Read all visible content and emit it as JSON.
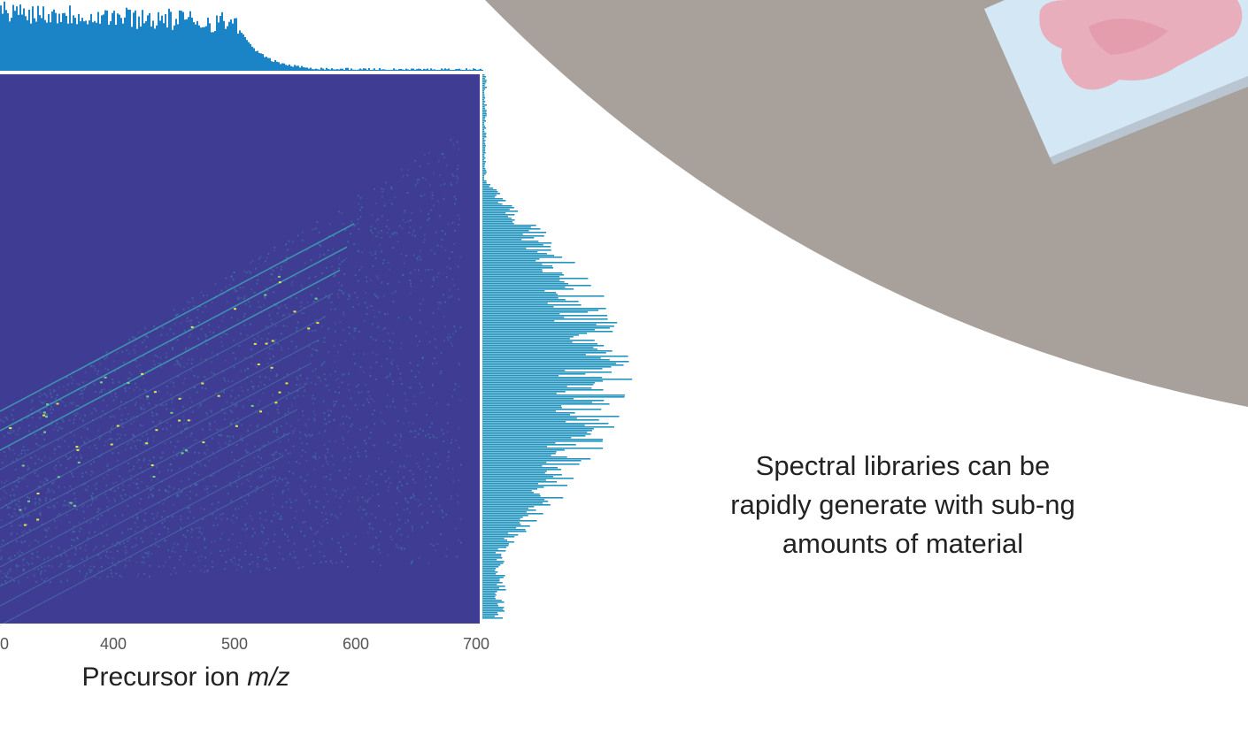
{
  "colors": {
    "heatmap_background": "#3f3c93",
    "marginal_top": "#1b84c6",
    "marginal_right": "#2394bd",
    "circle_fill": "#a8a19b",
    "slide_fill": "#d3e7f4",
    "tissue_fill": "#eba3b1"
  },
  "chart_data": {
    "type": "heatmap",
    "title": "",
    "xlabel_prefix": "Precursor ion ",
    "xlabel_italic": "m/z",
    "x_ticks": [
      "0",
      "400",
      "500",
      "600",
      "700"
    ],
    "x_visible_range": [
      300,
      705
    ],
    "ylabel": "",
    "marginal_histograms": [
      "top",
      "right"
    ],
    "colormap": "viridis",
    "grid": false,
    "legend": "none"
  },
  "caption": {
    "line1": "Spectral libraries can be",
    "line2": "rapidly generate with sub-ng",
    "line3": "amounts of material"
  }
}
